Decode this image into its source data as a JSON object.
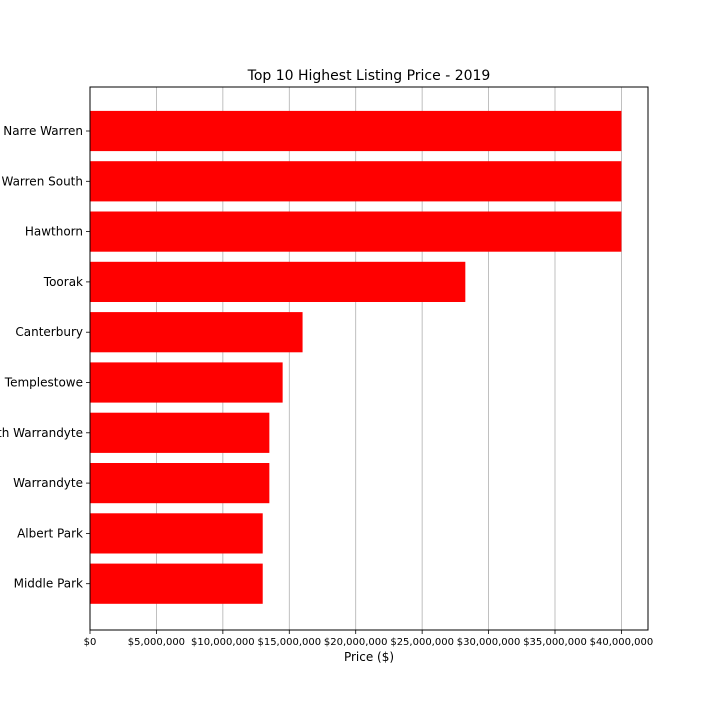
{
  "chart_data": {
    "type": "bar",
    "orientation": "horizontal",
    "title": "Top 10 Highest Listing Price - 2019",
    "xlabel": "Price ($)",
    "ylabel": "",
    "categories": [
      "Narre Warren",
      "Narre Warren South",
      "Hawthorn",
      "Toorak",
      "Canterbury",
      "Templestowe",
      "North Warrandyte",
      "Warrandyte",
      "Albert Park",
      "Middle Park"
    ],
    "values": [
      40000000,
      40000000,
      40000000,
      28250000,
      16000000,
      14500000,
      13500000,
      13500000,
      13000000,
      13000000
    ],
    "xlim": [
      0,
      42000000
    ],
    "x_ticks": [
      0,
      5000000,
      10000000,
      15000000,
      20000000,
      25000000,
      30000000,
      35000000,
      40000000
    ],
    "x_tick_labels": [
      "$0",
      "$5,000,000",
      "$10,000,000",
      "$15,000,000",
      "$20,000,000",
      "$25,000,000",
      "$30,000,000",
      "$35,000,000",
      "$40,000,000"
    ],
    "grid": "x-axis vertical lines",
    "bar_color": "#ff0000",
    "legend": "none"
  }
}
